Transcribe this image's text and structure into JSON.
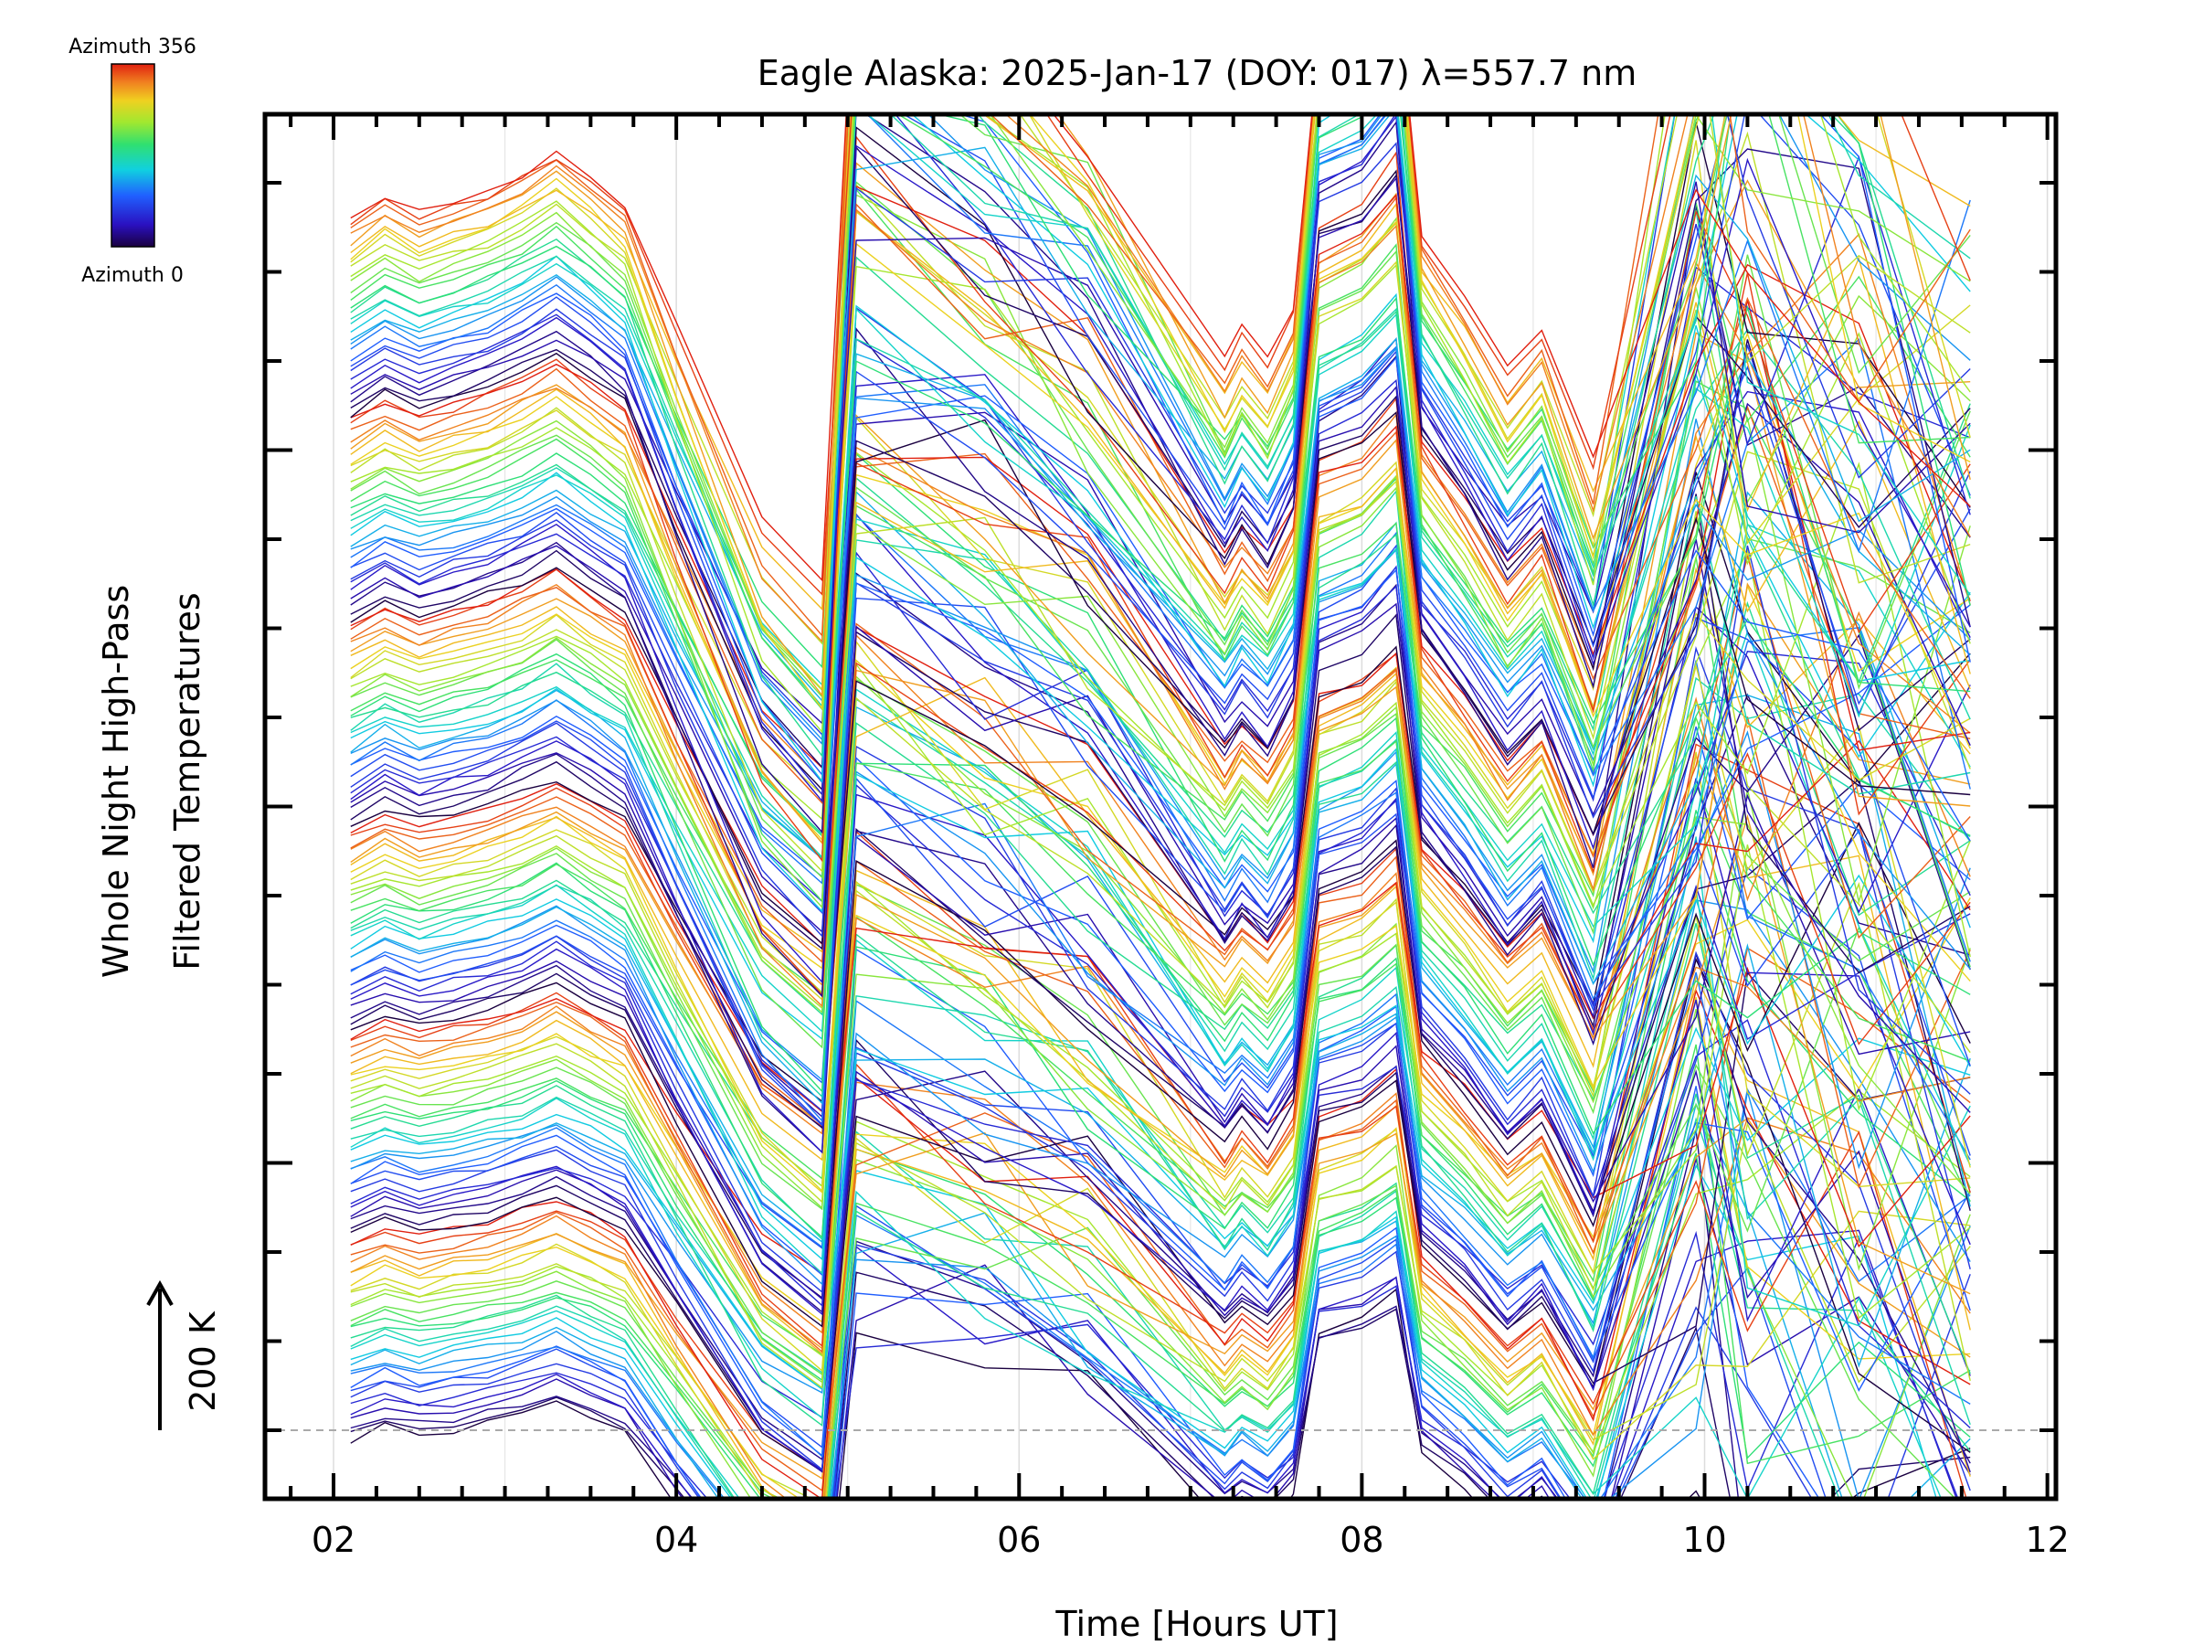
{
  "chart_data": {
    "type": "line",
    "title": "Eagle Alaska: 2025-Jan-17 (DOY: 017) λ=557.7 nm",
    "xlabel": "Time [Hours UT]",
    "ylabel_line1": "Whole Night High-Pass",
    "ylabel_line2": "Filtered Temperatures",
    "xlim": [
      1.6,
      12.05
    ],
    "x_ticks": [
      "02",
      "04",
      "06",
      "08",
      "10",
      "12"
    ],
    "x_tick_values": [
      2,
      4,
      6,
      8,
      10,
      12
    ],
    "y_axis": "offset stack, no numeric tick labels",
    "y_tick_count": 16,
    "grid": true,
    "scale_bar": {
      "label": "200 K",
      "value_K": 200
    },
    "colorbar": {
      "top_label": "Azimuth 356",
      "bottom_label": "Azimuth 0",
      "min": 0,
      "max": 356,
      "colormap": "rainbow"
    },
    "series_count": 180,
    "series_color_by": "azimuth",
    "note_values": "Stacked traces offset by azimuth; individual temperature values not printed",
    "sample_times_hours": [
      2.1,
      2.3,
      2.5,
      2.7,
      2.9,
      3.1,
      3.3,
      3.5,
      3.7,
      4.0,
      4.5,
      4.85,
      5.05,
      5.8,
      6.4,
      7.2,
      7.3,
      7.45,
      7.6,
      7.75,
      8.0,
      8.2,
      8.35,
      8.6,
      8.85,
      9.05,
      9.35,
      9.95,
      10.25,
      10.9,
      11.55
    ],
    "series_shape_offsets": [
      0,
      20,
      5,
      15,
      25,
      40,
      60,
      35,
      10,
      -110,
      -300,
      -360,
      230,
      150,
      60,
      -140,
      -110,
      -140,
      -90,
      170,
      190,
      230,
      -20,
      -80,
      -150,
      -110,
      -240,
      160,
      130,
      20,
      -80
    ]
  }
}
